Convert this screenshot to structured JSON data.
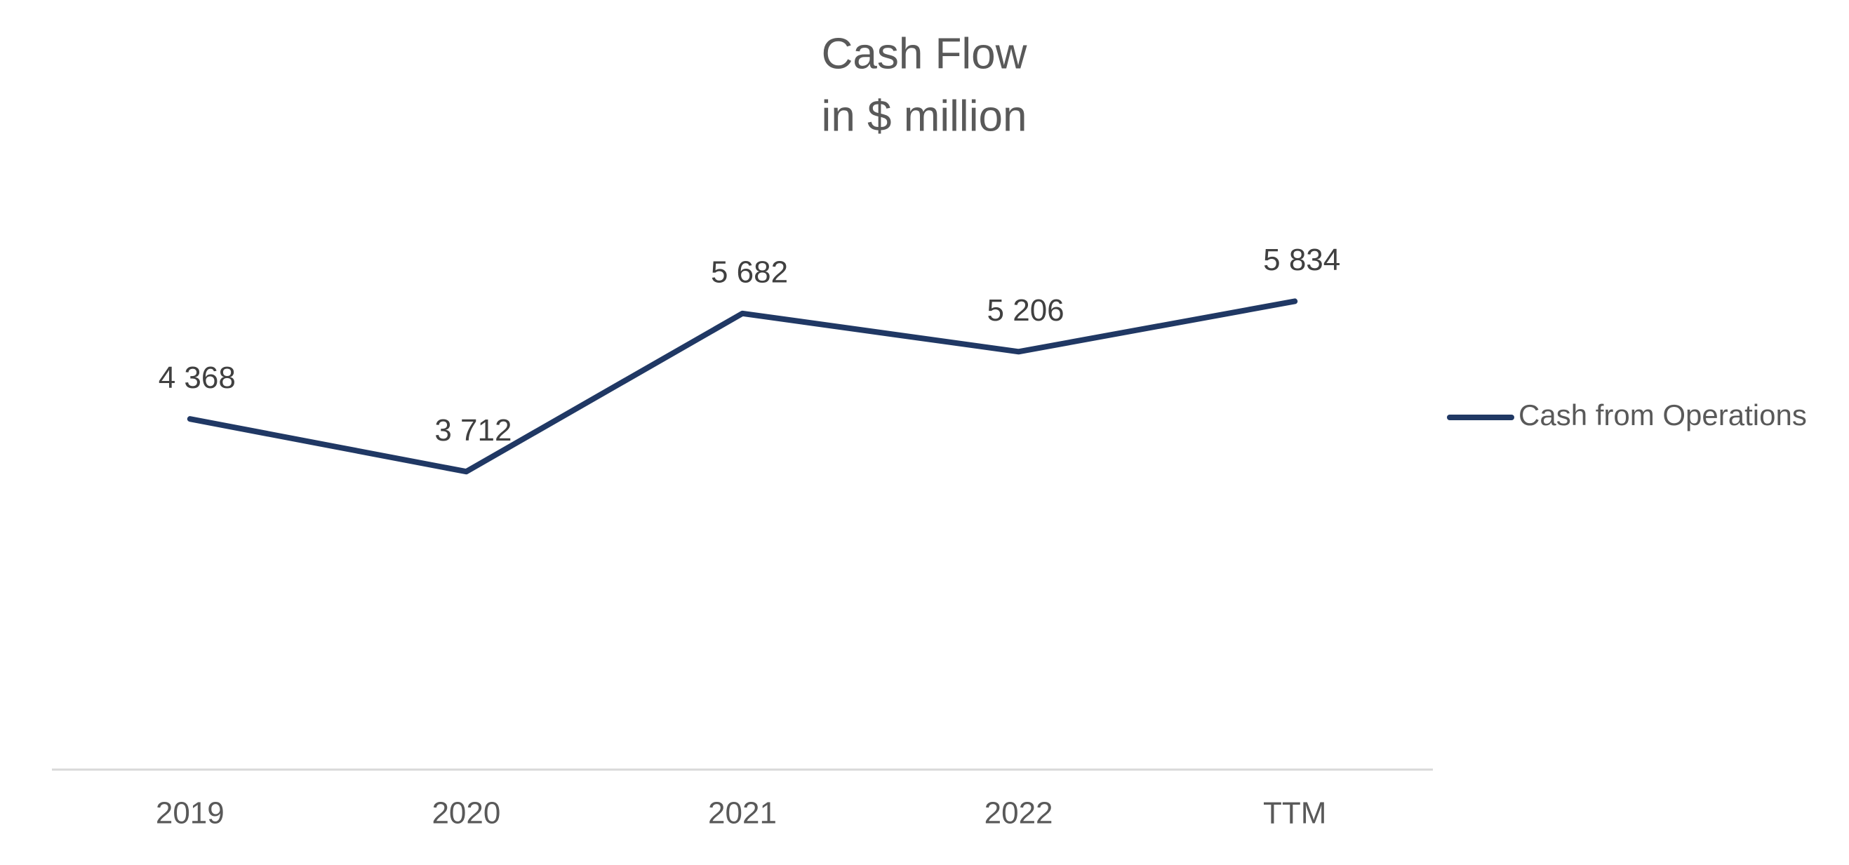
{
  "chart_data": {
    "type": "line",
    "title": "Cash Flow",
    "subtitle": "in $ million",
    "categories": [
      "2019",
      "2020",
      "2021",
      "2022",
      "TTM"
    ],
    "series": [
      {
        "name": "Cash from Operations",
        "color": "#203864",
        "values": [
          4368,
          3712,
          5682,
          5206,
          5834
        ],
        "value_labels": [
          "4 368",
          "3 712",
          "5 682",
          "5 206",
          "5 834"
        ]
      }
    ],
    "ylim": [
      0,
      7000
    ],
    "grid": false,
    "legend": "right"
  }
}
